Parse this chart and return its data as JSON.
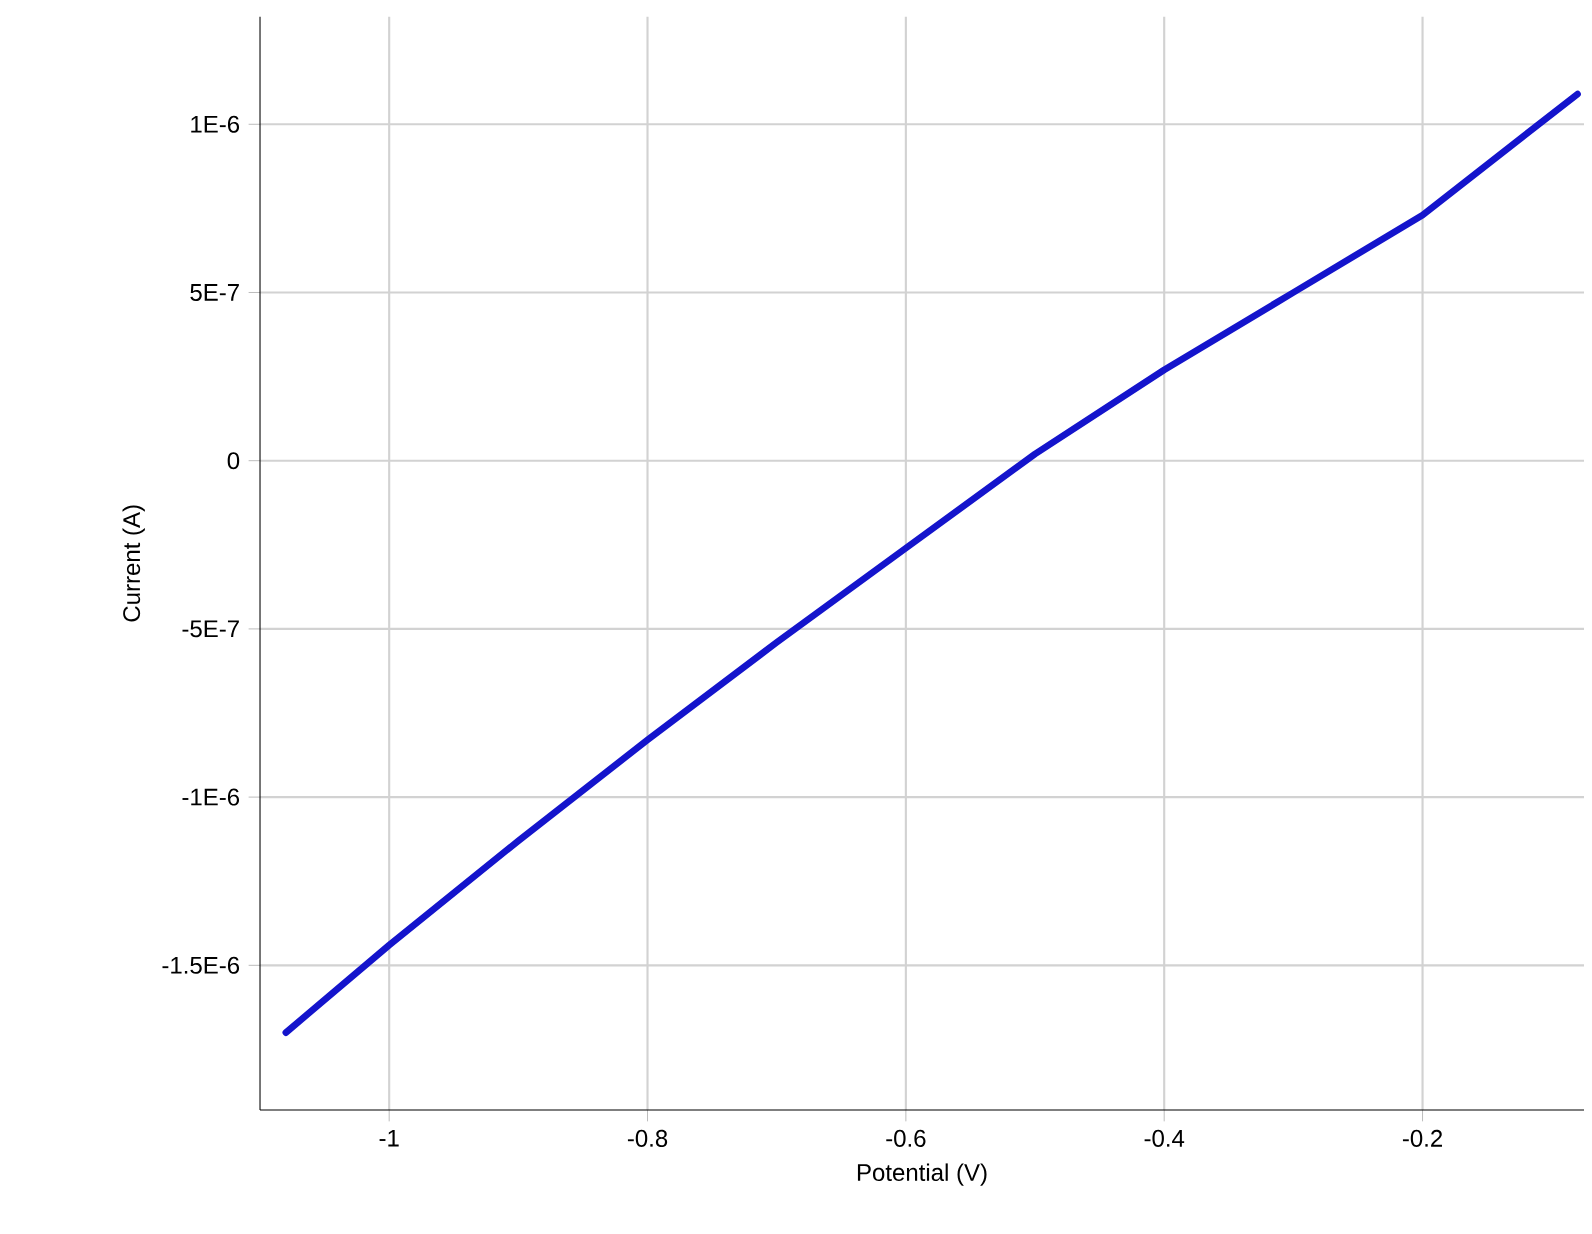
{
  "chart_data": {
    "type": "line",
    "xlabel": "Potential (V)",
    "ylabel": "Current (A)",
    "x": [
      -1.08,
      -1.0,
      -0.9,
      -0.8,
      -0.7,
      -0.6,
      -0.5,
      -0.4,
      -0.3,
      -0.2,
      -0.08
    ],
    "series": [
      {
        "color": "#1414cc",
        "values": [
          -1.7e-06,
          -1.44e-06,
          -1.13e-06,
          -8.3e-07,
          -5.4e-07,
          -2.6e-07,
          2e-08,
          2.7e-07,
          5e-07,
          7.3e-07,
          1.09e-06
        ]
      }
    ],
    "xlim": [
      -1.1,
      -0.075
    ],
    "ylim": [
      -1.93e-06,
      1.32e-06
    ],
    "xticks": [
      -1,
      -0.8,
      -0.6,
      -0.4,
      -0.2
    ],
    "yticks": [
      {
        "value": -1.5e-06,
        "label": "-1.5E-6"
      },
      {
        "value": -1e-06,
        "label": "-1E-6"
      },
      {
        "value": -5e-07,
        "label": "-5E-7"
      },
      {
        "value": 0,
        "label": "0"
      },
      {
        "value": 5e-07,
        "label": "5E-7"
      },
      {
        "value": 1e-06,
        "label": "1E-6"
      }
    ],
    "grid": true,
    "marker": "none",
    "line_style": "solid"
  }
}
